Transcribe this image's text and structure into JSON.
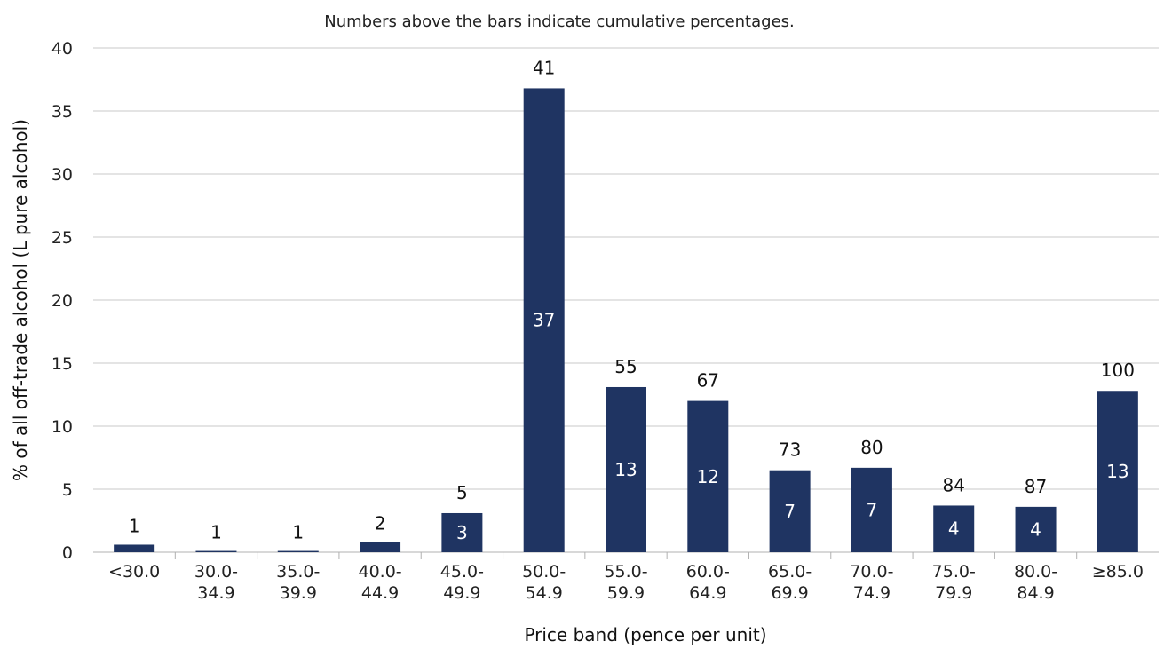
{
  "chart_data": {
    "type": "bar",
    "note": "Numbers above the bars indicate cumulative percentages.",
    "xlabel": "Price band (pence per unit)",
    "ylabel": "% of all off-trade alcohol (L pure alcohol)",
    "ylim": [
      0,
      40
    ],
    "yticks": [
      0,
      5,
      10,
      15,
      20,
      25,
      30,
      35,
      40
    ],
    "grid": true,
    "bar_color": "#1f3462",
    "categories": [
      [
        "<30.0"
      ],
      [
        "30.0-",
        "34.9"
      ],
      [
        "35.0-",
        "39.9"
      ],
      [
        "40.0-",
        "44.9"
      ],
      [
        "45.0-",
        "49.9"
      ],
      [
        "50.0-",
        "54.9"
      ],
      [
        "55.0-",
        "59.9"
      ],
      [
        "60.0-",
        "64.9"
      ],
      [
        "65.0-",
        "69.9"
      ],
      [
        "70.0-",
        "74.9"
      ],
      [
        "75.0-",
        "79.9"
      ],
      [
        "80.0-",
        "84.9"
      ],
      [
        "≥85.0"
      ]
    ],
    "values": [
      0.6,
      0.1,
      0.1,
      0.8,
      3.1,
      36.8,
      13.1,
      12.0,
      6.5,
      6.7,
      3.7,
      3.6,
      12.8
    ],
    "value_labels": [
      "",
      "",
      "",
      "",
      "3",
      "37",
      "13",
      "12",
      "7",
      "7",
      "4",
      "4",
      "13"
    ],
    "cumulative_labels": [
      "1",
      "1",
      "1",
      "2",
      "5",
      "41",
      "55",
      "67",
      "73",
      "80",
      "84",
      "87",
      "100"
    ]
  }
}
